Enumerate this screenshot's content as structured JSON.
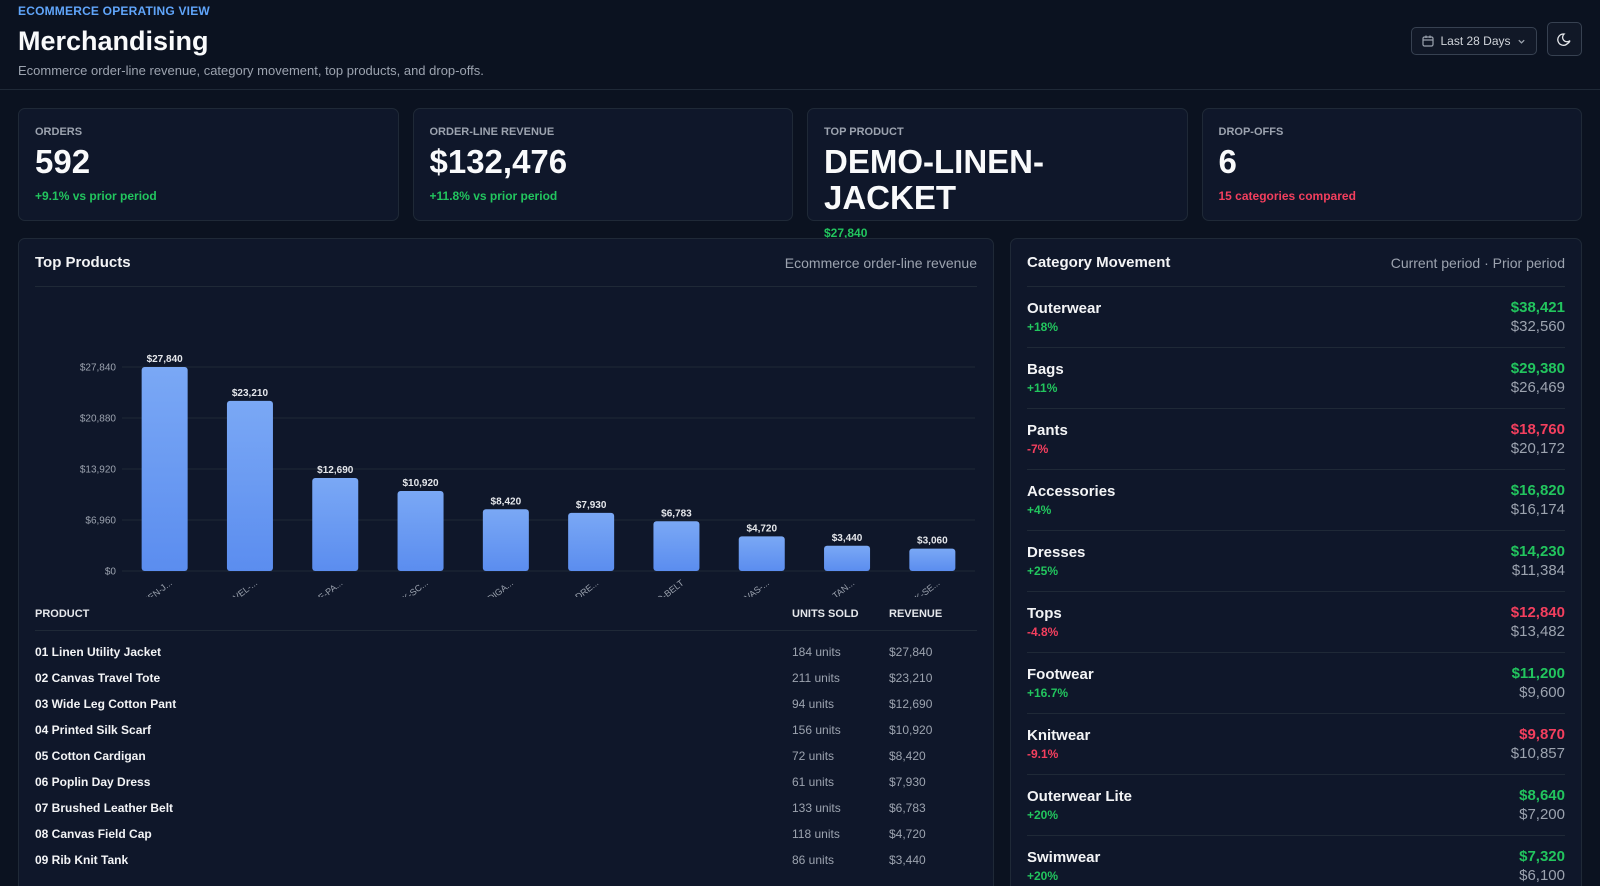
{
  "header": {
    "eyebrow": "ECOMMERCE OPERATING VIEW",
    "title": "Merchandising",
    "subtitle": "Ecommerce order-line revenue, category movement, top products, and drop-offs.",
    "date_range": "Last 28 Days"
  },
  "kpis": [
    {
      "label": "ORDERS",
      "value": "592",
      "delta": "+9.1% vs prior period",
      "tone": "green"
    },
    {
      "label": "ORDER-LINE REVENUE",
      "value": "$132,476",
      "delta": "+11.8% vs prior period",
      "tone": "green"
    },
    {
      "label": "TOP PRODUCT",
      "value": "DEMO-LINEN-JACKET",
      "delta": "$27,840",
      "tone": "green"
    },
    {
      "label": "DROP-OFFS",
      "value": "6",
      "delta": "15 categories compared",
      "tone": "red"
    }
  ],
  "top_products": {
    "title": "Top Products",
    "meta": "Ecommerce order-line revenue",
    "columns": {
      "product": "PRODUCT",
      "units": "UNITS SOLD",
      "revenue": "REVENUE"
    },
    "rows": [
      {
        "name": "01 Linen Utility Jacket",
        "units": "184 units",
        "revenue": "$27,840"
      },
      {
        "name": "02 Canvas Travel Tote",
        "units": "211 units",
        "revenue": "$23,210"
      },
      {
        "name": "03 Wide Leg Cotton Pant",
        "units": "94 units",
        "revenue": "$12,690"
      },
      {
        "name": "04 Printed Silk Scarf",
        "units": "156 units",
        "revenue": "$10,920"
      },
      {
        "name": "05 Cotton Cardigan",
        "units": "72 units",
        "revenue": "$8,420"
      },
      {
        "name": "06 Poplin Day Dress",
        "units": "61 units",
        "revenue": "$7,930"
      },
      {
        "name": "07 Brushed Leather Belt",
        "units": "133 units",
        "revenue": "$6,783"
      },
      {
        "name": "08 Canvas Field Cap",
        "units": "118 units",
        "revenue": "$4,720"
      },
      {
        "name": "09 Rib Knit Tank",
        "units": "86 units",
        "revenue": "$3,440"
      }
    ]
  },
  "chart_data": {
    "type": "bar",
    "categories": [
      "DEMO-LINEN-J...",
      "DEMO-TRAVEL-...",
      "DEMO-WIDE-PA...",
      "DEMO-SILK-SC...",
      "DEMO-CARDIGA...",
      "DEMO-DAY-DRE...",
      "DEMO-BELT",
      "DEMO-CANVAS-...",
      "DEMO-RIB-TAN...",
      "DEMO-SOCK-SE..."
    ],
    "values": [
      27840,
      23210,
      12690,
      10920,
      8420,
      7930,
      6783,
      4720,
      3440,
      3060
    ],
    "value_labels": [
      "$27,840",
      "$23,210",
      "$12,690",
      "$10,920",
      "$8,420",
      "$7,930",
      "$6,783",
      "$4,720",
      "$3,440",
      "$3,060"
    ],
    "yticks": [
      0,
      6960,
      13920,
      20880,
      27840
    ],
    "ytick_labels": [
      "$0",
      "$6,960",
      "$13,920",
      "$20,880",
      "$27,840"
    ],
    "ylim": [
      0,
      27840
    ],
    "grid": true,
    "bar_color": "#5b8def"
  },
  "category_movement": {
    "title": "Category Movement",
    "meta": "Current period · Prior period",
    "rows": [
      {
        "name": "Outerwear",
        "pct": "+18%",
        "current": "$38,421",
        "prior": "$32,560",
        "tone": "green"
      },
      {
        "name": "Bags",
        "pct": "+11%",
        "current": "$29,380",
        "prior": "$26,469",
        "tone": "green"
      },
      {
        "name": "Pants",
        "pct": "-7%",
        "current": "$18,760",
        "prior": "$20,172",
        "tone": "red"
      },
      {
        "name": "Accessories",
        "pct": "+4%",
        "current": "$16,820",
        "prior": "$16,174",
        "tone": "green"
      },
      {
        "name": "Dresses",
        "pct": "+25%",
        "current": "$14,230",
        "prior": "$11,384",
        "tone": "green"
      },
      {
        "name": "Tops",
        "pct": "-4.8%",
        "current": "$12,840",
        "prior": "$13,482",
        "tone": "red"
      },
      {
        "name": "Footwear",
        "pct": "+16.7%",
        "current": "$11,200",
        "prior": "$9,600",
        "tone": "green"
      },
      {
        "name": "Knitwear",
        "pct": "-9.1%",
        "current": "$9,870",
        "prior": "$10,857",
        "tone": "red"
      },
      {
        "name": "Outerwear Lite",
        "pct": "+20%",
        "current": "$8,640",
        "prior": "$7,200",
        "tone": "green"
      },
      {
        "name": "Swimwear",
        "pct": "+20%",
        "current": "$7,320",
        "prior": "$6,100",
        "tone": "green"
      }
    ]
  }
}
